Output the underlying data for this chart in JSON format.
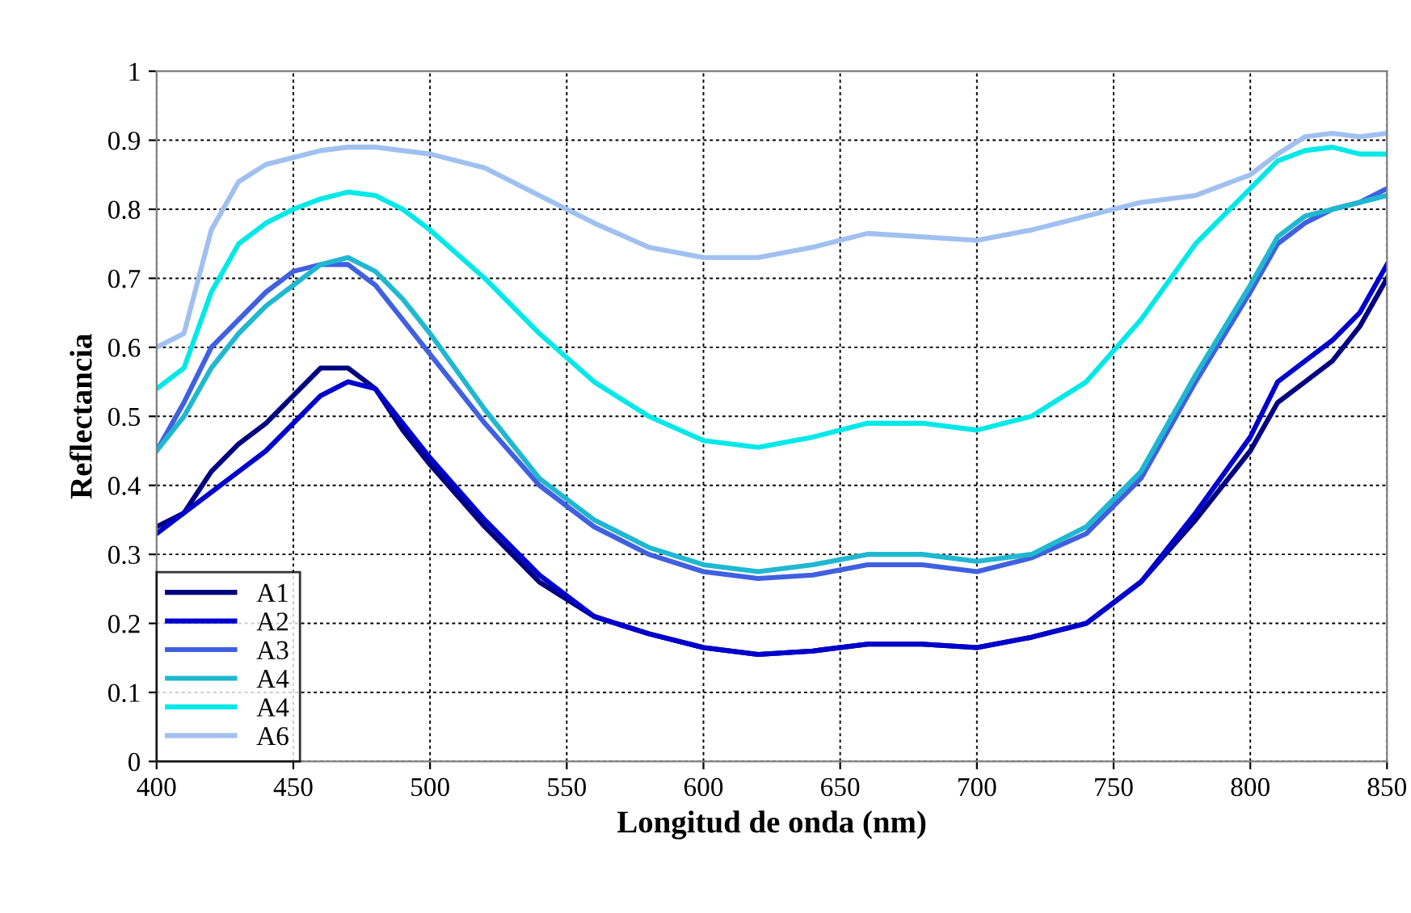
{
  "chart_data": {
    "type": "line",
    "xlabel": "Longitud de onda (nm)",
    "ylabel": "Reflectancia",
    "x": [
      400,
      410,
      420,
      430,
      440,
      450,
      460,
      470,
      480,
      490,
      500,
      520,
      540,
      560,
      580,
      600,
      620,
      640,
      660,
      680,
      700,
      720,
      740,
      760,
      780,
      800,
      810,
      820,
      830,
      840,
      850
    ],
    "series": [
      {
        "name": "A1",
        "color": "#000080",
        "values": [
          0.34,
          0.36,
          0.42,
          0.46,
          0.49,
          0.53,
          0.57,
          0.57,
          0.54,
          0.48,
          0.43,
          0.34,
          0.26,
          0.21,
          0.185,
          0.165,
          0.155,
          0.16,
          0.17,
          0.17,
          0.165,
          0.18,
          0.2,
          0.26,
          0.35,
          0.45,
          0.52,
          0.55,
          0.58,
          0.63,
          0.7
        ]
      },
      {
        "name": "A2",
        "color": "#0000cc",
        "values": [
          0.33,
          0.36,
          0.39,
          0.42,
          0.45,
          0.49,
          0.53,
          0.55,
          0.54,
          0.49,
          0.44,
          0.35,
          0.27,
          0.21,
          0.185,
          0.165,
          0.155,
          0.16,
          0.17,
          0.17,
          0.165,
          0.18,
          0.2,
          0.26,
          0.36,
          0.47,
          0.55,
          0.58,
          0.61,
          0.65,
          0.72
        ]
      },
      {
        "name": "A3",
        "color": "#4060e0",
        "values": [
          0.45,
          0.52,
          0.6,
          0.64,
          0.68,
          0.71,
          0.72,
          0.72,
          0.69,
          0.64,
          0.59,
          0.49,
          0.4,
          0.34,
          0.3,
          0.275,
          0.265,
          0.27,
          0.285,
          0.285,
          0.275,
          0.295,
          0.33,
          0.41,
          0.55,
          0.68,
          0.75,
          0.78,
          0.8,
          0.81,
          0.83
        ]
      },
      {
        "name": "A4",
        "color": "#20b8d0",
        "values": [
          0.45,
          0.5,
          0.57,
          0.62,
          0.66,
          0.69,
          0.72,
          0.73,
          0.71,
          0.67,
          0.62,
          0.51,
          0.41,
          0.35,
          0.31,
          0.285,
          0.275,
          0.285,
          0.3,
          0.3,
          0.29,
          0.3,
          0.34,
          0.42,
          0.56,
          0.69,
          0.76,
          0.79,
          0.8,
          0.81,
          0.82
        ]
      },
      {
        "name": "A4",
        "color": "#00e8e8",
        "values": [
          0.54,
          0.57,
          0.68,
          0.75,
          0.78,
          0.8,
          0.815,
          0.825,
          0.82,
          0.8,
          0.77,
          0.7,
          0.62,
          0.55,
          0.5,
          0.465,
          0.455,
          0.47,
          0.49,
          0.49,
          0.48,
          0.5,
          0.55,
          0.64,
          0.75,
          0.83,
          0.87,
          0.885,
          0.89,
          0.88,
          0.88
        ]
      },
      {
        "name": "A6",
        "color": "#a0c0f0",
        "values": [
          0.6,
          0.62,
          0.77,
          0.84,
          0.865,
          0.875,
          0.885,
          0.89,
          0.89,
          0.885,
          0.88,
          0.86,
          0.82,
          0.78,
          0.745,
          0.73,
          0.73,
          0.745,
          0.765,
          0.76,
          0.755,
          0.77,
          0.79,
          0.81,
          0.82,
          0.85,
          0.88,
          0.905,
          0.91,
          0.905,
          0.91
        ]
      }
    ],
    "xlim": [
      400,
      850
    ],
    "xticks": [
      400,
      450,
      500,
      550,
      600,
      650,
      700,
      750,
      800,
      850
    ],
    "ylim": [
      0,
      1
    ],
    "yticks": [
      0,
      0.1,
      0.2,
      0.3,
      0.4,
      0.5,
      0.6,
      0.7,
      0.8,
      0.9,
      1
    ],
    "grid": true,
    "legend": "bottom left",
    "line_style": "solid",
    "marker": "none"
  }
}
